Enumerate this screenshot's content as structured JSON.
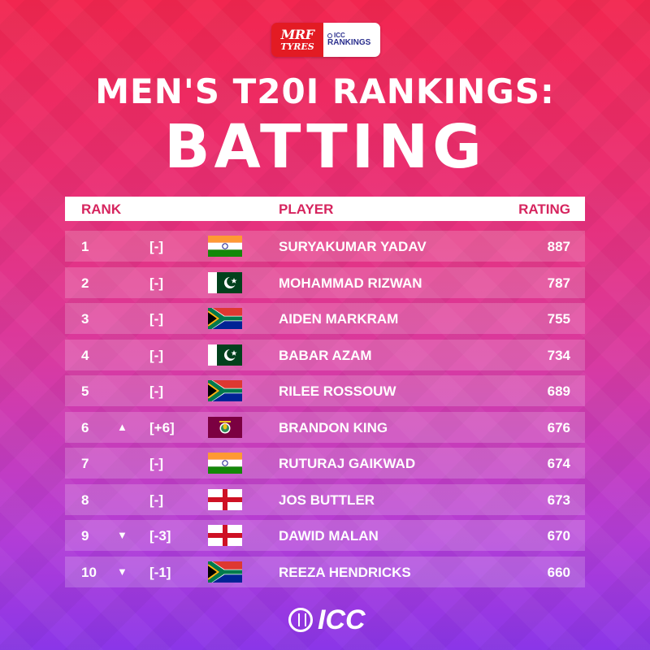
{
  "sponsor": {
    "brand_line1": "MRF",
    "brand_line2": "TYRES",
    "icc_line1": "ICC",
    "icc_line2": "RANKINGS"
  },
  "title": "MEN'S T20I RANKINGS:",
  "subtitle": "BATTING",
  "table": {
    "headers": {
      "rank": "RANK",
      "player": "PLAYER",
      "rating": "RATING"
    },
    "rows": [
      {
        "rank": "1",
        "movement": "none",
        "arrow": "",
        "change": "[-]",
        "flag": "india-flag-icon",
        "player": "SURYAKUMAR YADAV",
        "rating": "887"
      },
      {
        "rank": "2",
        "movement": "none",
        "arrow": "",
        "change": "[-]",
        "flag": "pakistan-flag-icon",
        "player": "MOHAMMAD RIZWAN",
        "rating": "787"
      },
      {
        "rank": "3",
        "movement": "none",
        "arrow": "",
        "change": "[-]",
        "flag": "south-africa-flag-icon",
        "player": "AIDEN MARKRAM",
        "rating": "755"
      },
      {
        "rank": "4",
        "movement": "none",
        "arrow": "",
        "change": "[-]",
        "flag": "pakistan-flag-icon",
        "player": "BABAR AZAM",
        "rating": "734"
      },
      {
        "rank": "5",
        "movement": "none",
        "arrow": "",
        "change": "[-]",
        "flag": "south-africa-flag-icon",
        "player": "RILEE ROSSOUW",
        "rating": "689"
      },
      {
        "rank": "6",
        "movement": "up",
        "arrow": "▲",
        "change": "[+6]",
        "flag": "west-indies-flag-icon",
        "player": "BRANDON KING",
        "rating": "676"
      },
      {
        "rank": "7",
        "movement": "none",
        "arrow": "",
        "change": "[-]",
        "flag": "india-flag-icon",
        "player": "RUTURAJ GAIKWAD",
        "rating": "674"
      },
      {
        "rank": "8",
        "movement": "none",
        "arrow": "",
        "change": "[-]",
        "flag": "england-flag-icon",
        "player": "JOS BUTTLER",
        "rating": "673"
      },
      {
        "rank": "9",
        "movement": "down",
        "arrow": "▼",
        "change": "[-3]",
        "flag": "england-flag-icon",
        "player": "DAWID MALAN",
        "rating": "670"
      },
      {
        "rank": "10",
        "movement": "down",
        "arrow": "▼",
        "change": "[-1]",
        "flag": "south-africa-flag-icon",
        "player": "REEZA HENDRICKS",
        "rating": "660"
      }
    ]
  },
  "footer": {
    "logo_text": "ICC"
  },
  "colors": {
    "accent": "#d6245e",
    "row_fill": "rgba(255,255,255,0.18)"
  }
}
